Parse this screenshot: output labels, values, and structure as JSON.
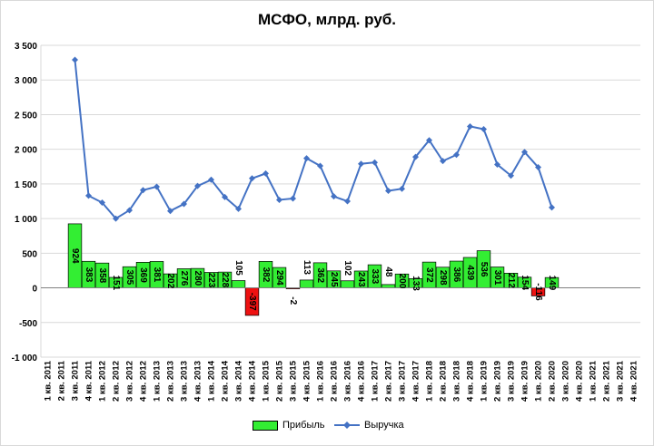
{
  "chart_data": {
    "type": "bar",
    "title": "МСФО, млрд. руб.",
    "categories": [
      "1 кв. 2011",
      "2 кв. 2011",
      "3 кв. 2011",
      "4 кв. 2011",
      "1 кв. 2012",
      "2 кв. 2012",
      "3 кв. 2012",
      "4 кв. 2012",
      "1 кв. 2013",
      "2 кв. 2013",
      "3 кв. 2013",
      "4 кв. 2013",
      "1 кв. 2014",
      "2 кв. 2014",
      "3 кв. 2014",
      "4 кв. 2014",
      "1 кв. 2015",
      "2 кв. 2015",
      "3 кв. 2015",
      "4 кв. 2015",
      "1 кв. 2016",
      "2 кв. 2016",
      "3 кв. 2016",
      "4 кв. 2016",
      "1 кв. 2017",
      "2 кв. 2017",
      "3 кв. 2017",
      "4 кв. 2017",
      "1 кв. 2018",
      "2 кв. 2018",
      "3 кв. 2018",
      "4 кв. 2018",
      "1 кв. 2019",
      "2 кв. 2019",
      "3 кв. 2019",
      "4 кв. 2019",
      "1 кв. 2020",
      "2 кв. 2020",
      "3 кв. 2020",
      "4 кв. 2020",
      "1 кв. 2021",
      "2 кв. 2021",
      "3 кв. 2021",
      "4 кв. 2021"
    ],
    "series": [
      {
        "name": "Прибыль",
        "kind": "bar",
        "color": "#33ee33",
        "negative_color": "#ee1111",
        "values": [
          null,
          null,
          924,
          383,
          358,
          151,
          305,
          369,
          381,
          202,
          276,
          280,
          223,
          228,
          105,
          -397,
          382,
          294,
          -2,
          113,
          362,
          245,
          102,
          243,
          333,
          48,
          200,
          133,
          372,
          298,
          386,
          439,
          536,
          301,
          212,
          154,
          -116,
          149,
          null,
          null,
          null,
          null,
          null,
          null
        ],
        "labels": [
          "",
          "",
          "924",
          "383",
          "358",
          "151",
          "305",
          "369",
          "381",
          "202",
          "276",
          "280",
          "223",
          "228",
          "105",
          "-397",
          "382",
          "294",
          "-2",
          "113",
          "362",
          "245",
          "102",
          "243",
          "333",
          "48",
          "200",
          "133",
          "372",
          "298",
          "386",
          "439",
          "536",
          "301",
          "212",
          "154",
          "-116",
          "149",
          "",
          "",
          "",
          "",
          "",
          ""
        ]
      },
      {
        "name": "Выручка",
        "kind": "line",
        "color": "#4472c4",
        "values": [
          null,
          null,
          3290,
          1330,
          1230,
          1000,
          1120,
          1410,
          1460,
          1110,
          1210,
          1470,
          1560,
          1310,
          1140,
          1580,
          1650,
          1270,
          1290,
          1870,
          1760,
          1320,
          1250,
          1790,
          1810,
          1400,
          1430,
          1890,
          2130,
          1830,
          1920,
          2330,
          2290,
          1780,
          1620,
          1960,
          1740,
          1160,
          null,
          null,
          null,
          null,
          null,
          null
        ]
      }
    ],
    "ylim": [
      -1000,
      3500
    ],
    "yticks": [
      -1000,
      -500,
      0,
      500,
      1000,
      1500,
      2000,
      2500,
      3000,
      3500
    ],
    "ytick_labels": [
      "-1 000",
      "-500",
      "0",
      "500",
      "1 000",
      "1 500",
      "2 000",
      "2 500",
      "3 000",
      "3 500"
    ],
    "grid": true,
    "legend_position": "bottom"
  }
}
